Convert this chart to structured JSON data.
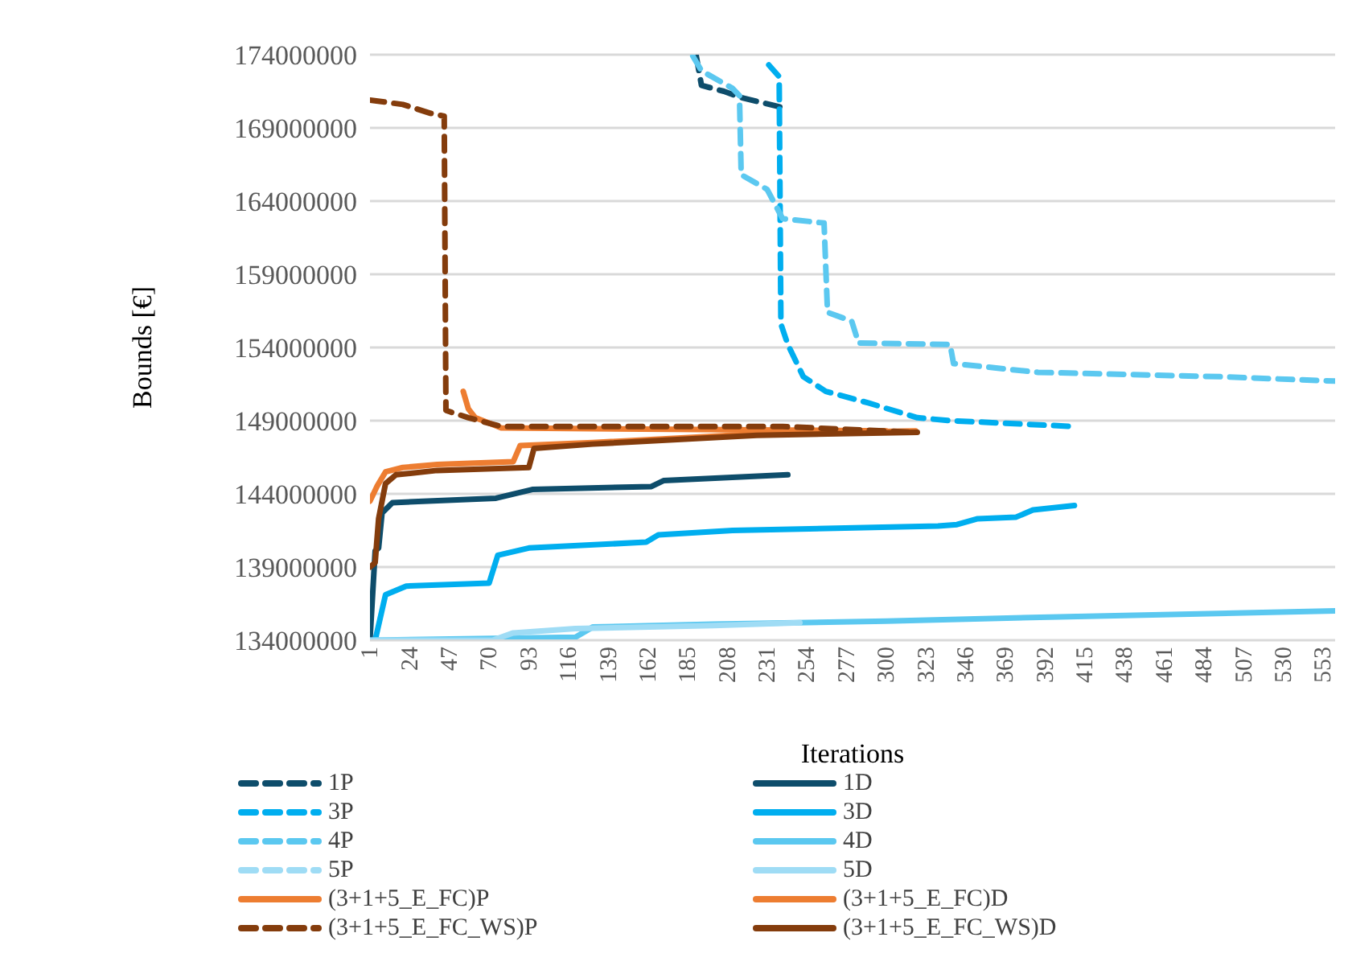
{
  "chart_data": {
    "type": "line",
    "xlabel": "Iterations",
    "ylabel": "Bounds [€]",
    "xlim": [
      1,
      560
    ],
    "xticks": [
      1,
      24,
      47,
      70,
      93,
      116,
      139,
      162,
      185,
      208,
      231,
      254,
      277,
      300,
      323,
      346,
      369,
      392,
      415,
      438,
      461,
      484,
      507,
      530,
      553
    ],
    "ylim": [
      134000000,
      174000000
    ],
    "yticks": [
      134000000,
      139000000,
      144000000,
      149000000,
      154000000,
      159000000,
      164000000,
      169000000,
      174000000
    ],
    "grid": "y",
    "legend": "bottom",
    "marker": "none",
    "series": [
      {
        "name": "1P",
        "color": "#0e4d6b",
        "line_style": "dashed",
        "x": [
          190,
          193,
          206,
          215,
          243
        ],
        "values": [
          173900000,
          171900000,
          171500000,
          171100000,
          170300000
        ]
      },
      {
        "name": "1D",
        "color": "#0e4d6b",
        "line_style": "solid",
        "x": [
          1,
          4,
          6,
          8,
          14,
          74,
          95,
          164,
          171,
          243
        ],
        "values": [
          134000000,
          140100000,
          140300000,
          142700000,
          143400000,
          143700000,
          144300000,
          144500000,
          144900000,
          145300000
        ]
      },
      {
        "name": "3P",
        "color": "#00aeef",
        "line_style": "dashed",
        "x": [
          232,
          238,
          239,
          243,
          252,
          265,
          290,
          318,
          337,
          409
        ],
        "values": [
          173300000,
          172500000,
          155600000,
          154200000,
          152000000,
          151000000,
          150200000,
          149200000,
          149000000,
          148600000
        ]
      },
      {
        "name": "3D",
        "color": "#00aeef",
        "line_style": "solid",
        "x": [
          4,
          10,
          22,
          70,
          75,
          93,
          161,
          168,
          211,
          330,
          341,
          353,
          375,
          385,
          409
        ],
        "values": [
          134000000,
          137100000,
          137700000,
          137900000,
          139800000,
          140300000,
          140700000,
          141200000,
          141500000,
          141800000,
          141900000,
          142300000,
          142400000,
          142900000,
          143200000
        ]
      },
      {
        "name": "4P",
        "color": "#5bc8f0",
        "line_style": "dashed",
        "x": [
          188,
          193,
          211,
          215,
          216,
          231,
          240,
          264,
          266,
          280,
          284,
          337,
          339,
          388,
          494,
          560
        ],
        "values": [
          173900000,
          172900000,
          171700000,
          171200000,
          165800000,
          164800000,
          162800000,
          162500000,
          156400000,
          155800000,
          154300000,
          154200000,
          152900000,
          152300000,
          152000000,
          151700000
        ]
      },
      {
        "name": "4D",
        "color": "#5bc8f0",
        "line_style": "solid",
        "x": [
          1,
          120,
          130,
          200,
          300,
          400,
          560
        ],
        "values": [
          134000000,
          134200000,
          134900000,
          135100000,
          135300000,
          135600000,
          136000000
        ]
      },
      {
        "name": "5P",
        "color": "#9fdcf5",
        "line_style": "dashed"
      },
      {
        "name": "5D",
        "color": "#9fdcf5",
        "line_style": "solid",
        "x": [
          1,
          72,
          84,
          120,
          200,
          250
        ],
        "values": [
          134000000,
          134000000,
          134500000,
          134800000,
          135000000,
          135200000
        ]
      },
      {
        "name": "(3+1+5_E_FC)P",
        "color": "#ed7d31",
        "line_style": "solid",
        "x": [
          55,
          58,
          62,
          77,
          300
        ],
        "values": [
          151000000,
          149800000,
          149200000,
          148500000,
          148300000
        ]
      },
      {
        "name": "(3+1+5_E_FC)D",
        "color": "#ed7d31",
        "line_style": "solid",
        "x": [
          1,
          5,
          10,
          20,
          40,
          84,
          88,
          130,
          225,
          317
        ],
        "values": [
          143500000,
          144500000,
          145500000,
          145800000,
          146000000,
          146200000,
          147300000,
          147500000,
          148100000,
          148300000
        ]
      },
      {
        "name": "(3+1+5_E_FC_WS)P",
        "color": "#843c0c",
        "line_style": "dashed",
        "x": [
          1,
          20,
          36,
          44,
          45,
          58,
          77,
          240,
          317
        ],
        "values": [
          170900000,
          170600000,
          170000000,
          169800000,
          149700000,
          149200000,
          148600000,
          148600000,
          148200000
        ]
      },
      {
        "name": "(3+1+5_E_FC_WS)D",
        "color": "#843c0c",
        "line_style": "solid",
        "x": [
          1,
          4,
          6,
          10,
          16,
          40,
          93,
          96,
          130,
          225,
          318
        ],
        "values": [
          139000000,
          139300000,
          142300000,
          144700000,
          145300000,
          145600000,
          145800000,
          147100000,
          147400000,
          148000000,
          148200000
        ]
      }
    ]
  }
}
